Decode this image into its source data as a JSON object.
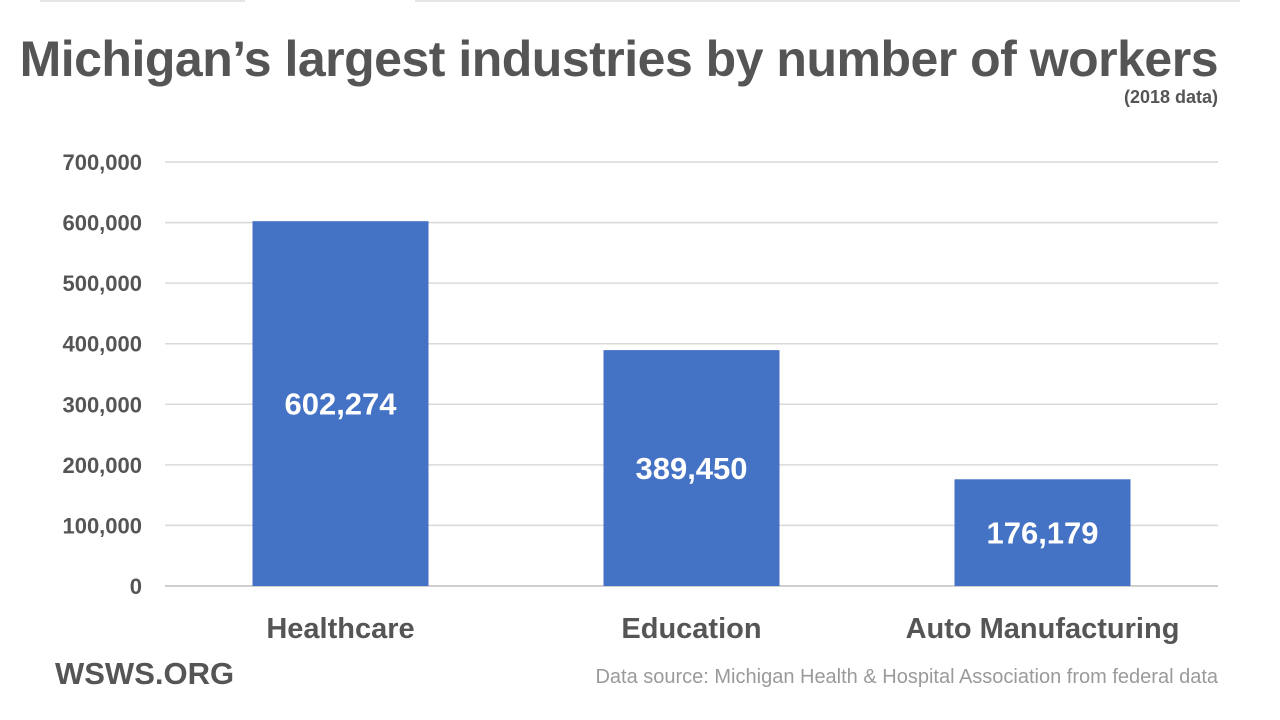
{
  "title": "Michigan’s largest industries by number of workers",
  "subtitle": "(2018 data)",
  "brand": "WSWS.ORG",
  "source": "Data source: Michigan Health & Hospital Association from federal data",
  "colors": {
    "bar": "#4472c4",
    "grid": "#d9d9d9",
    "axis_text": "#555555",
    "label_text": "#ffffff",
    "source_text": "#9a9a9a"
  },
  "chart_data": {
    "type": "bar",
    "title": "Michigan’s largest industries by number of workers",
    "subtitle": "(2018 data)",
    "categories": [
      "Healthcare",
      "Education",
      "Auto Manufacturing"
    ],
    "values": [
      602274,
      389450,
      176179
    ],
    "data_labels": [
      "602,274",
      "389,450",
      "176,179"
    ],
    "ylim": [
      0,
      700000
    ],
    "yticks": [
      0,
      100000,
      200000,
      300000,
      400000,
      500000,
      600000,
      700000
    ],
    "ytick_labels": [
      "0",
      "100,000",
      "200,000",
      "300,000",
      "400,000",
      "500,000",
      "600,000",
      "700,000"
    ],
    "grid": true,
    "legend": "none"
  }
}
